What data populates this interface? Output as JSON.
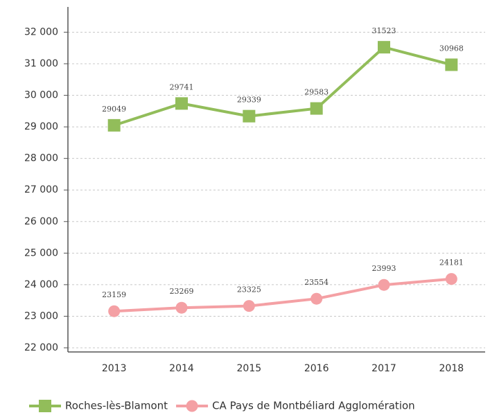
{
  "chart_data": {
    "type": "line",
    "categories": [
      "2013",
      "2014",
      "2015",
      "2016",
      "2017",
      "2018"
    ],
    "series": [
      {
        "name": "Roches-lès-Blamont",
        "color": "#92bd5a",
        "marker": "square",
        "values": [
          29049,
          29741,
          29339,
          29583,
          31523,
          30968
        ]
      },
      {
        "name": "CA Pays de Montbéliard Agglomération",
        "color": "#f4a0a4",
        "marker": "circle",
        "values": [
          23159,
          23269,
          23325,
          23554,
          23993,
          24181
        ]
      }
    ],
    "ylim": [
      22000,
      32800
    ],
    "yticks": [
      {
        "value": 22000,
        "label": "22 000"
      },
      {
        "value": 23000,
        "label": "23 000"
      },
      {
        "value": 24000,
        "label": "24 000"
      },
      {
        "value": 25000,
        "label": "25 000"
      },
      {
        "value": 26000,
        "label": "26 000"
      },
      {
        "value": 27000,
        "label": "27 000"
      },
      {
        "value": 28000,
        "label": "28 000"
      },
      {
        "value": 29000,
        "label": "29 000"
      },
      {
        "value": 30000,
        "label": "30 000"
      },
      {
        "value": 31000,
        "label": "31 000"
      },
      {
        "value": 32000,
        "label": "32 000"
      }
    ],
    "grid": true,
    "legend": "bottom"
  }
}
